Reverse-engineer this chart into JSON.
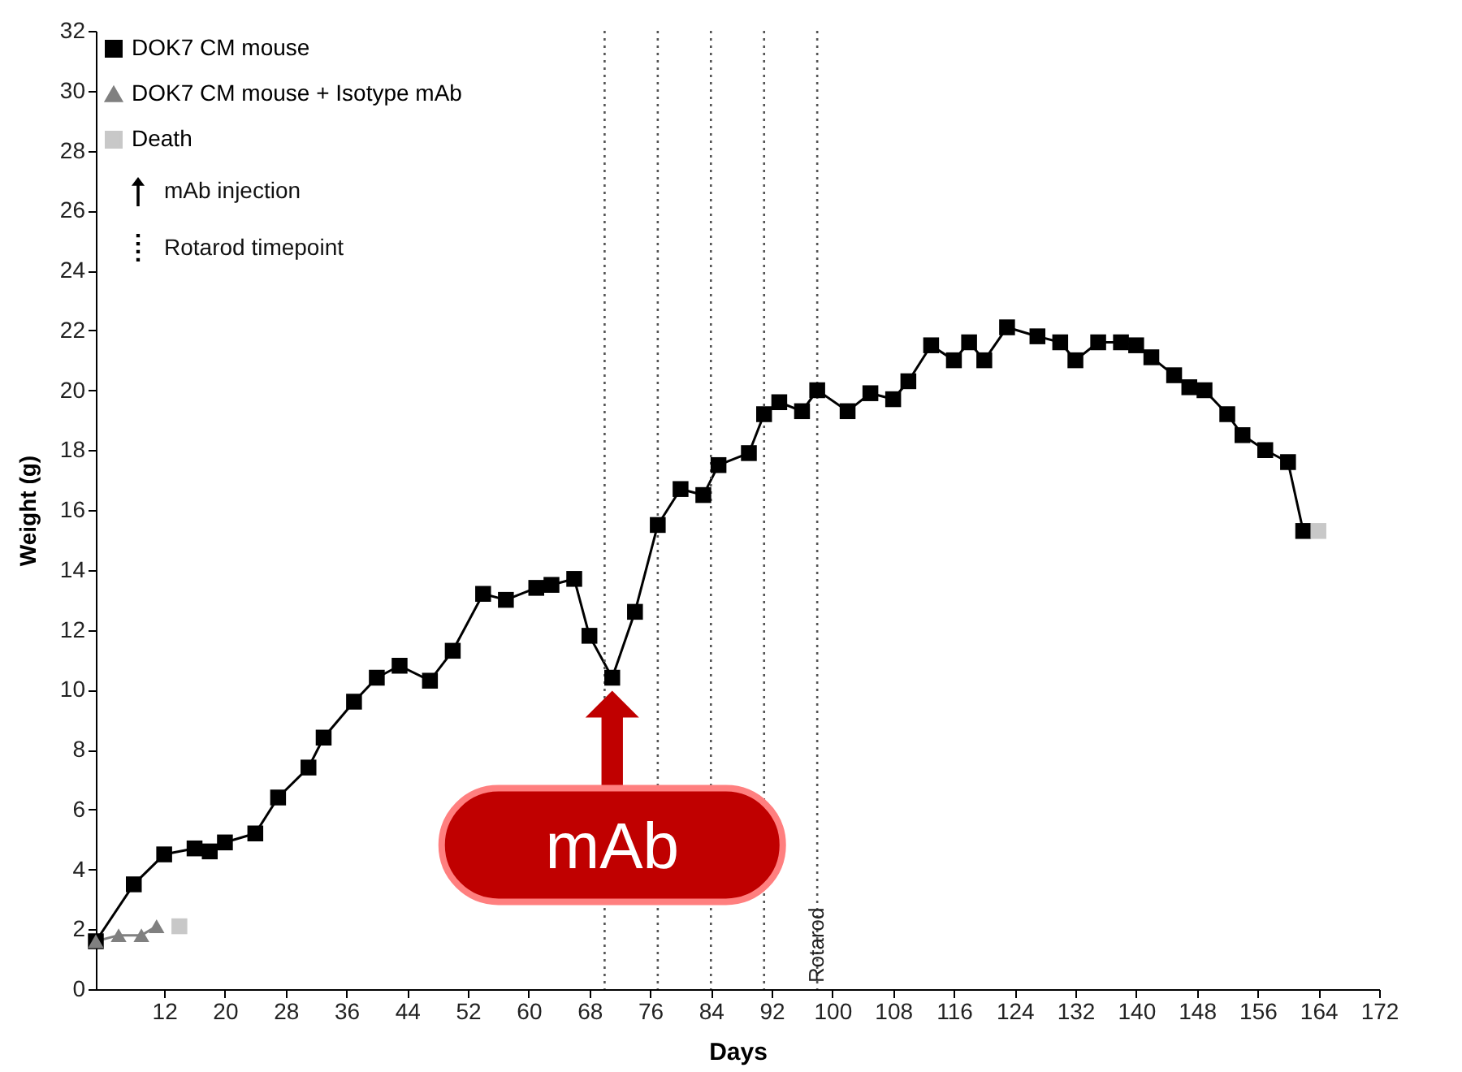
{
  "chart_data": {
    "type": "line",
    "xlabel": "Days",
    "ylabel": "Weight (g)",
    "xlim": [
      3,
      172
    ],
    "xticks": [
      12,
      20,
      28,
      36,
      44,
      52,
      60,
      68,
      76,
      84,
      92,
      100,
      108,
      116,
      124,
      132,
      140,
      148,
      156,
      164,
      172
    ],
    "ylim": [
      0,
      32
    ],
    "yticks": [
      0,
      2,
      4,
      6,
      8,
      10,
      12,
      14,
      16,
      18,
      20,
      22,
      24,
      26,
      28,
      30,
      32
    ],
    "grid": false,
    "legend": "top left",
    "series": [
      {
        "name": "DOK7 CM mouse",
        "color": "#000000",
        "marker": "square",
        "x": [
          3,
          8,
          12,
          16,
          18,
          20,
          24,
          27,
          31,
          33,
          37,
          40,
          43,
          47,
          50,
          54,
          57,
          61,
          63,
          66,
          68,
          71,
          74,
          77,
          80,
          83,
          85,
          89,
          91,
          93,
          96,
          98,
          102,
          105,
          108,
          110,
          113,
          116,
          118,
          120,
          123,
          127,
          130,
          132,
          135,
          138,
          140,
          142,
          145,
          147,
          149,
          152,
          154,
          157,
          160,
          162
        ],
        "values": [
          1.6,
          3.5,
          4.5,
          4.7,
          4.6,
          4.9,
          5.2,
          6.4,
          7.4,
          8.4,
          9.6,
          10.4,
          10.8,
          10.3,
          11.3,
          13.2,
          13.0,
          13.4,
          13.5,
          13.7,
          11.8,
          10.4,
          12.6,
          15.5,
          16.7,
          16.5,
          17.5,
          17.9,
          19.2,
          19.6,
          19.3,
          20.0,
          19.3,
          19.9,
          19.7,
          20.3,
          21.5,
          21.0,
          21.6,
          21.0,
          22.1,
          21.8,
          21.6,
          21.0,
          21.6,
          21.6,
          21.5,
          21.1,
          20.5,
          20.1,
          20.0,
          19.2,
          18.5,
          18.0,
          17.6,
          15.3
        ]
      },
      {
        "name": "DOK7 CM mouse + Isotype mAb",
        "color": "#808080",
        "marker": "triangle",
        "x": [
          3,
          6,
          9,
          11
        ],
        "values": [
          1.6,
          1.8,
          1.8,
          2.1
        ]
      },
      {
        "name": "Death",
        "type": "scatter",
        "color": "#c8c8c8",
        "marker": "square",
        "x": [
          14,
          164
        ],
        "values": [
          2.1,
          15.3
        ]
      }
    ],
    "ref_lines": [
      {
        "axis": "x",
        "value": 70,
        "label": null,
        "color": "#555555",
        "line_style": "dotted"
      },
      {
        "axis": "x",
        "value": 77,
        "label": null,
        "color": "#555555",
        "line_style": "dotted"
      },
      {
        "axis": "x",
        "value": 84,
        "label": null,
        "color": "#555555",
        "line_style": "dotted"
      },
      {
        "axis": "x",
        "value": 91,
        "label": null,
        "color": "#555555",
        "line_style": "dotted"
      },
      {
        "axis": "x",
        "value": 98,
        "label": "Rotarod",
        "color": "#555555",
        "line_style": "dotted"
      }
    ],
    "annotations": [
      "mAb injection",
      "Rotarod timepoint",
      {
        "text": "mAb",
        "x": 71,
        "y": 10.4
      }
    ]
  }
}
